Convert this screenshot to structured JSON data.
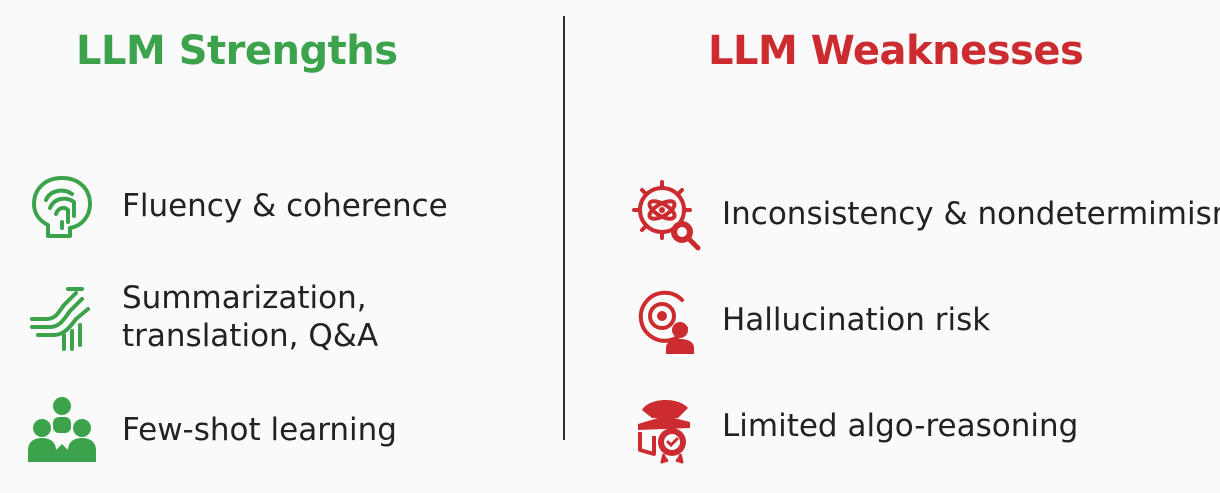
{
  "strengths": {
    "title": "LLM Strengths",
    "color": "#3ca34c",
    "items": [
      {
        "icon": "brain-head-icon",
        "lines": [
          "Fluency & coherence"
        ]
      },
      {
        "icon": "branching-arrows-icon",
        "lines": [
          "Summarization,",
          "translation, Q&A"
        ]
      },
      {
        "icon": "people-group-icon",
        "lines": [
          "Few-shot learning"
        ]
      }
    ]
  },
  "weaknesses": {
    "title": "LLM Weaknesses",
    "color": "#cc2b2f",
    "items": [
      {
        "icon": "gear-atom-magnifier-icon",
        "lines": [
          "Inconsistency & nondetermimism"
        ]
      },
      {
        "icon": "target-person-icon",
        "lines": [
          "Hallucination risk"
        ]
      },
      {
        "icon": "graduation-badge-icon",
        "lines": [
          "Limited algo-reasoning"
        ]
      }
    ]
  }
}
